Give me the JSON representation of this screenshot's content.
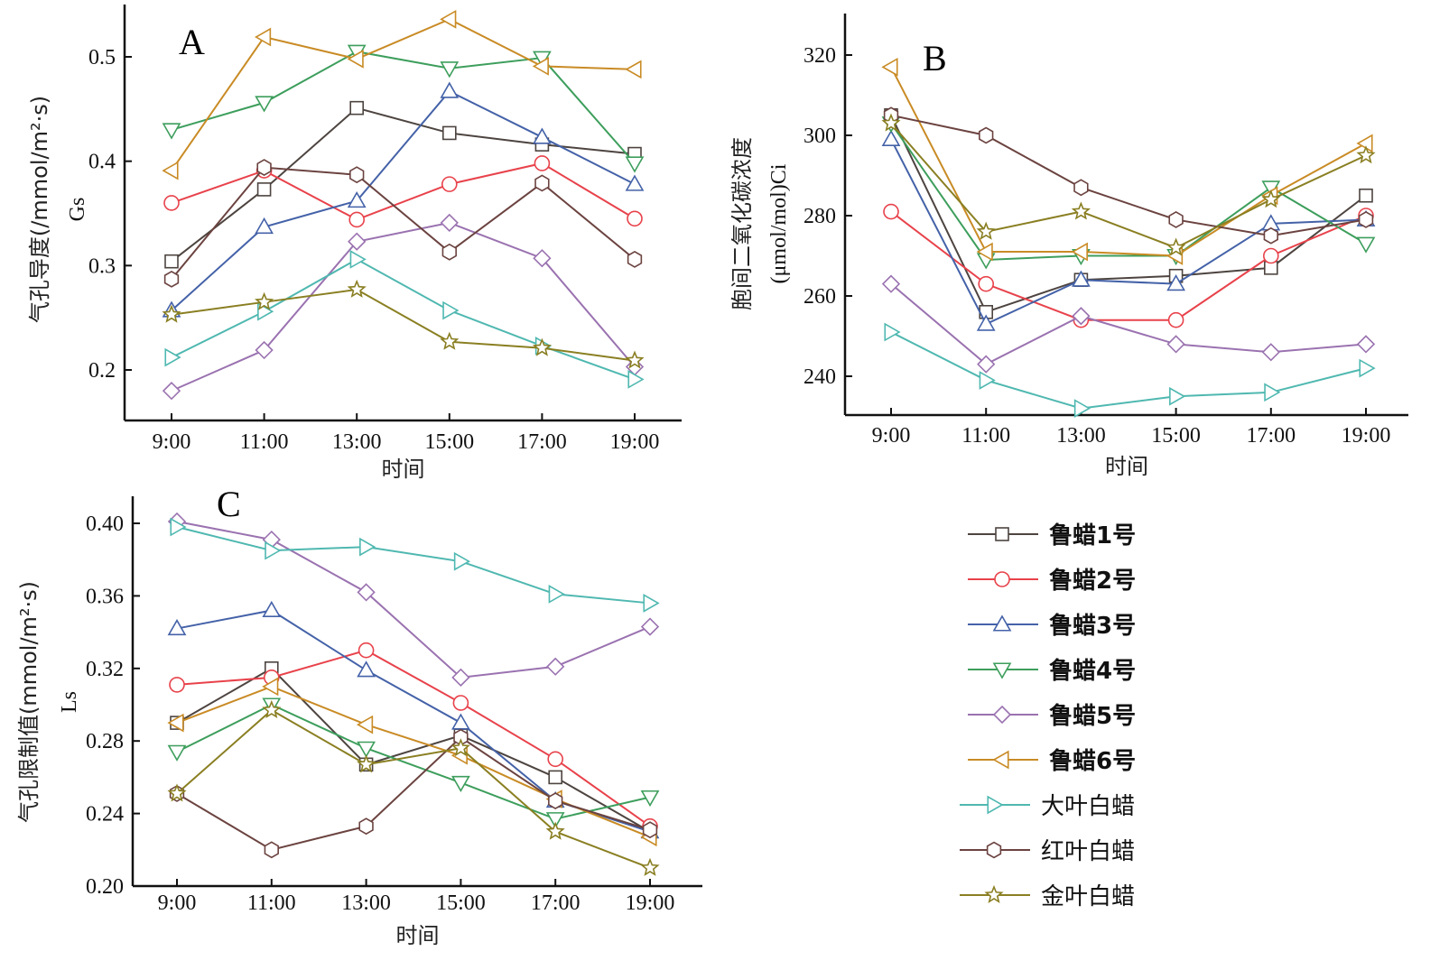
{
  "legend": [
    {
      "name": "鲁蜡1号",
      "color": "#4d4440",
      "marker": "square"
    },
    {
      "name": "鲁蜡2号",
      "color": "#e8424b",
      "marker": "circle"
    },
    {
      "name": "鲁蜡3号",
      "color": "#4462a8",
      "marker": "triangle-up"
    },
    {
      "name": "鲁蜡4号",
      "color": "#3d9e5c",
      "marker": "triangle-down"
    },
    {
      "name": "鲁蜡5号",
      "color": "#9a72b0",
      "marker": "diamond"
    },
    {
      "name": "鲁蜡6号",
      "color": "#c98b25",
      "marker": "triangle-left"
    },
    {
      "name": "大叶白蜡",
      "color": "#4fb8b0",
      "marker": "triangle-right"
    },
    {
      "name": "红叶白蜡",
      "color": "#6b4340",
      "marker": "hexagon"
    },
    {
      "name": "金叶白蜡",
      "color": "#8a7f22",
      "marker": "star"
    }
  ],
  "chart_data": [
    {
      "type": "line",
      "panel": "A",
      "title": "",
      "xlabel": "时间",
      "ylabel": "气孔导度(/mmol/m²·s)",
      "ylabel2": "Gs",
      "categories": [
        "9:00",
        "11:00",
        "13:00",
        "15:00",
        "17:00",
        "19:00"
      ],
      "ylim": [
        0.155,
        0.555
      ],
      "yticks": [
        0.2,
        0.3,
        0.4,
        0.5
      ],
      "ytick_labels": [
        "0.2",
        "0.3",
        "0.4",
        "0.5"
      ],
      "grid": false,
      "series": [
        {
          "name": "鲁蜡1号",
          "values": [
            0.304,
            0.373,
            0.451,
            0.427,
            0.416,
            0.407
          ]
        },
        {
          "name": "鲁蜡2号",
          "values": [
            0.36,
            0.391,
            0.344,
            0.378,
            0.398,
            0.345
          ]
        },
        {
          "name": "鲁蜡3号",
          "values": [
            0.257,
            0.337,
            0.362,
            0.467,
            0.423,
            0.378
          ]
        },
        {
          "name": "鲁蜡4号",
          "values": [
            0.43,
            0.456,
            0.505,
            0.489,
            0.499,
            0.398
          ]
        },
        {
          "name": "鲁蜡5号",
          "values": [
            0.18,
            0.219,
            0.323,
            0.341,
            0.307,
            0.203
          ]
        },
        {
          "name": "鲁蜡6号",
          "values": [
            0.391,
            0.519,
            0.498,
            0.536,
            0.491,
            0.488
          ]
        },
        {
          "name": "大叶白蜡",
          "values": [
            0.212,
            0.256,
            0.306,
            0.257,
            0.223,
            0.191
          ]
        },
        {
          "name": "红叶白蜡",
          "values": [
            0.287,
            0.394,
            0.387,
            0.313,
            0.379,
            0.306
          ]
        },
        {
          "name": "金叶白蜡",
          "values": [
            0.253,
            0.265,
            0.277,
            0.227,
            0.221,
            0.209
          ]
        }
      ]
    },
    {
      "type": "line",
      "panel": "B",
      "title": "",
      "xlabel": "时间",
      "ylabel": "胞间二氧化碳浓度",
      "ylabel2": "(μmol/mol)Ci",
      "categories": [
        "9:00",
        "11:00",
        "13:00",
        "15:00",
        "17:00",
        "19:00"
      ],
      "ylim": [
        230,
        330
      ],
      "yticks": [
        240,
        260,
        280,
        300,
        320
      ],
      "ytick_labels": [
        "240",
        "260",
        "280",
        "300",
        "320"
      ],
      "grid": false,
      "series": [
        {
          "name": "鲁蜡1号",
          "values": [
            305,
            256,
            264,
            265,
            267,
            285
          ]
        },
        {
          "name": "鲁蜡2号",
          "values": [
            281,
            263,
            254,
            254,
            270,
            280
          ]
        },
        {
          "name": "鲁蜡3号",
          "values": [
            299,
            253,
            264,
            263,
            278,
            279
          ]
        },
        {
          "name": "鲁蜡4号",
          "values": [
            303,
            269,
            270,
            270,
            287,
            273
          ]
        },
        {
          "name": "鲁蜡5号",
          "values": [
            263,
            243,
            255,
            248,
            246,
            248
          ]
        },
        {
          "name": "鲁蜡6号",
          "values": [
            317,
            271,
            271,
            270,
            285,
            298
          ]
        },
        {
          "name": "大叶白蜡",
          "values": [
            251,
            239,
            232,
            235,
            236,
            242
          ]
        },
        {
          "name": "红叶白蜡",
          "values": [
            305,
            300,
            287,
            279,
            275,
            279
          ]
        },
        {
          "name": "金叶白蜡",
          "values": [
            303,
            276,
            281,
            272,
            284,
            295
          ]
        }
      ]
    },
    {
      "type": "line",
      "panel": "C",
      "title": "",
      "xlabel": "时间",
      "ylabel": "气孔限制值(mmol/m²·s)",
      "ylabel2": "Ls",
      "categories": [
        "9:00",
        "11:00",
        "13:00",
        "15:00",
        "17:00",
        "19:00"
      ],
      "ylim": [
        0.2,
        0.42
      ],
      "yticks": [
        0.2,
        0.24,
        0.28,
        0.32,
        0.36,
        0.4
      ],
      "ytick_labels": [
        "0.20",
        "0.24",
        "0.28",
        "0.32",
        "0.36",
        "0.40"
      ],
      "grid": false,
      "series": [
        {
          "name": "鲁蜡1号",
          "values": [
            0.29,
            0.32,
            0.267,
            0.283,
            0.26,
            0.23
          ]
        },
        {
          "name": "鲁蜡2号",
          "values": [
            0.311,
            0.315,
            0.33,
            0.301,
            0.27,
            0.233
          ]
        },
        {
          "name": "鲁蜡3号",
          "values": [
            0.342,
            0.352,
            0.319,
            0.29,
            0.247,
            0.23
          ]
        },
        {
          "name": "鲁蜡4号",
          "values": [
            0.274,
            0.3,
            0.276,
            0.257,
            0.237,
            0.249
          ]
        },
        {
          "name": "鲁蜡5号",
          "values": [
            0.401,
            0.391,
            0.362,
            0.315,
            0.321,
            0.343
          ]
        },
        {
          "name": "鲁蜡6号",
          "values": [
            0.29,
            0.31,
            0.289,
            0.272,
            0.248,
            0.227
          ]
        },
        {
          "name": "大叶白蜡",
          "values": [
            0.398,
            0.385,
            0.387,
            0.379,
            0.361,
            0.356
          ]
        },
        {
          "name": "红叶白蜡",
          "values": [
            0.251,
            0.22,
            0.233,
            0.282,
            0.247,
            0.231
          ]
        },
        {
          "name": "金叶白蜡",
          "values": [
            0.251,
            0.297,
            0.267,
            0.276,
            0.23,
            0.21
          ]
        }
      ]
    }
  ]
}
